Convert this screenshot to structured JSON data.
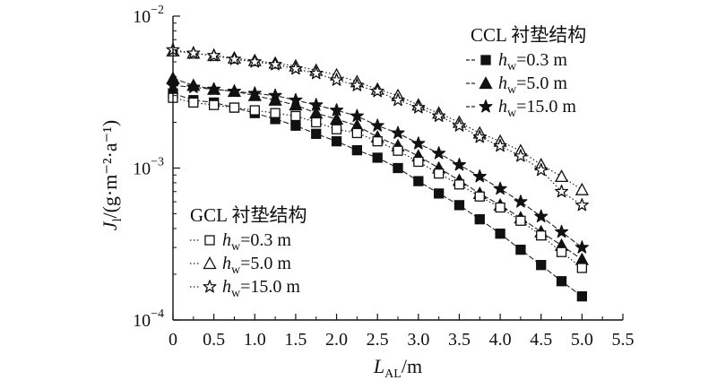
{
  "chart_data": {
    "type": "scatter",
    "xlabel_main": "L",
    "xlabel_sub": "AL",
    "xlabel_unit": "/m",
    "ylabel_main": "J",
    "ylabel_sub": "l",
    "ylabel_unit": "/(g·m⁻²·a⁻¹)",
    "xlim": [
      0,
      5.5
    ],
    "ylim": [
      0.0001,
      0.01
    ],
    "yscale": "log",
    "x_ticks": [
      "0",
      "0.5",
      "1.0",
      "1.5",
      "2.0",
      "2.5",
      "3.0",
      "3.5",
      "4.0",
      "4.5",
      "5.0",
      "5.5"
    ],
    "y_ticks": [
      {
        "base": "10",
        "exp": "−2",
        "value": 0.01
      },
      {
        "base": "10",
        "exp": "−3",
        "value": 0.001
      },
      {
        "base": "10",
        "exp": "−4",
        "value": 0.0001
      }
    ],
    "x": [
      0,
      0.25,
      0.5,
      0.75,
      1.0,
      1.25,
      1.5,
      1.75,
      2.0,
      2.25,
      2.5,
      2.75,
      3.0,
      3.25,
      3.5,
      3.75,
      4.0,
      4.25,
      4.5,
      4.75,
      5.0
    ],
    "groups": [
      {
        "title": "CCL 衬垫结构",
        "series": [
          {
            "name_base": "h",
            "name_sub": "w",
            "name_rest": "=0.3 m",
            "marker": "square",
            "filled": true,
            "line": "solid",
            "values": [
              0.0031,
              0.0028,
              0.0027,
              0.0025,
              0.0023,
              0.0021,
              0.0019,
              0.00168,
              0.0015,
              0.00131,
              0.00117,
              0.001,
              0.00082,
              0.00068,
              0.00057,
              0.00046,
              0.00037,
              0.00029,
              0.00023,
              0.00018,
              0.000143
            ]
          },
          {
            "name_base": "h",
            "name_sub": "w",
            "name_rest": "=5.0 m",
            "marker": "triangle",
            "filled": true,
            "line": "solid",
            "values": [
              0.0039,
              0.0035,
              0.0033,
              0.0032,
              0.003,
              0.0028,
              0.0026,
              0.0023,
              0.0021,
              0.0019,
              0.0016,
              0.0014,
              0.0012,
              0.001,
              0.00083,
              0.00068,
              0.00057,
              0.00047,
              0.00038,
              0.00031,
              0.00025
            ]
          },
          {
            "name_base": "h",
            "name_sub": "w",
            "name_rest": "=15.0 m",
            "marker": "star",
            "filled": true,
            "line": "solid",
            "values": [
              0.0035,
              0.0034,
              0.0033,
              0.0032,
              0.0031,
              0.003,
              0.0028,
              0.0026,
              0.0024,
              0.0022,
              0.0019,
              0.0017,
              0.00145,
              0.00125,
              0.00105,
              0.00088,
              0.00073,
              0.0006,
              0.00048,
              0.00038,
              0.0003
            ]
          }
        ]
      },
      {
        "title": "GCL 衬垫结构",
        "series": [
          {
            "name_base": "h",
            "name_sub": "w",
            "name_rest": "=0.3 m",
            "marker": "square",
            "filled": false,
            "line": "dotted",
            "values": [
              0.0029,
              0.0027,
              0.0026,
              0.0025,
              0.0024,
              0.0023,
              0.0022,
              0.002,
              0.0018,
              0.0017,
              0.0015,
              0.0013,
              0.0011,
              0.00092,
              0.00078,
              0.00065,
              0.00055,
              0.00045,
              0.00036,
              0.00028,
              0.00022
            ]
          },
          {
            "name_base": "h",
            "name_sub": "w",
            "name_rest": "=5.0 m",
            "marker": "triangle",
            "filled": false,
            "line": "dotted",
            "values": [
              0.0059,
              0.0057,
              0.0055,
              0.0053,
              0.0051,
              0.0049,
              0.0047,
              0.0044,
              0.0041,
              0.0037,
              0.0033,
              0.003,
              0.0026,
              0.0023,
              0.002,
              0.0017,
              0.0015,
              0.0013,
              0.00105,
              0.00088,
              0.00072
            ]
          },
          {
            "name_base": "h",
            "name_sub": "w",
            "name_rest": "=15.0 m",
            "marker": "star",
            "filled": false,
            "line": "dotted",
            "values": [
              0.006,
              0.0057,
              0.0055,
              0.0052,
              0.005,
              0.0048,
              0.0045,
              0.0042,
              0.0038,
              0.0035,
              0.0032,
              0.0028,
              0.0025,
              0.0022,
              0.0019,
              0.0016,
              0.0014,
              0.0012,
              0.00097,
              0.0007,
              0.00057
            ]
          }
        ]
      }
    ]
  }
}
